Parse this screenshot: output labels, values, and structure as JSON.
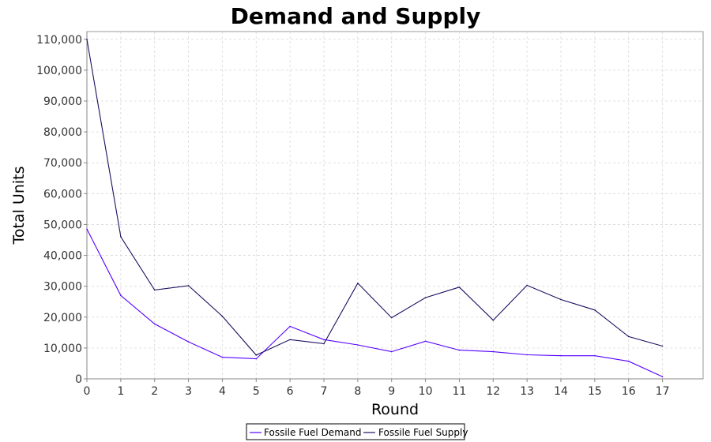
{
  "chart_data": {
    "type": "line",
    "title": "Demand and Supply",
    "xlabel": "Round",
    "ylabel": "Total Units",
    "x": [
      0,
      1,
      2,
      3,
      4,
      5,
      6,
      7,
      8,
      9,
      10,
      11,
      12,
      13,
      14,
      15,
      16,
      17
    ],
    "xlim": [
      0,
      18.2
    ],
    "ylim": [
      0,
      112500
    ],
    "y_ticks": [
      0,
      10000,
      20000,
      30000,
      40000,
      50000,
      60000,
      70000,
      80000,
      90000,
      100000,
      110000
    ],
    "y_tick_labels": [
      "0",
      "10,000",
      "20,000",
      "30,000",
      "40,000",
      "50,000",
      "60,000",
      "70,000",
      "80,000",
      "90,000",
      "100,000",
      "110,000"
    ],
    "x_tick_labels": [
      "0",
      "1",
      "2",
      "3",
      "4",
      "5",
      "6",
      "7",
      "8",
      "9",
      "10",
      "11",
      "12",
      "13",
      "14",
      "15",
      "16",
      "17"
    ],
    "grid": true,
    "legend_position": "bottom",
    "series": [
      {
        "name": "Fossile Fuel Demand",
        "color": "#5500ff",
        "values": [
          48500,
          27000,
          17800,
          12000,
          7000,
          6500,
          17000,
          12700,
          11000,
          8800,
          12200,
          9300,
          8800,
          7800,
          7500,
          7500,
          5700,
          700
        ]
      },
      {
        "name": "Fossile Fuel Supply",
        "color": "#1a1060",
        "values": [
          110000,
          46000,
          28800,
          30200,
          20300,
          7700,
          12700,
          11400,
          31000,
          19800,
          26300,
          29700,
          19000,
          30300,
          25700,
          22300,
          13700,
          10600
        ]
      }
    ]
  }
}
